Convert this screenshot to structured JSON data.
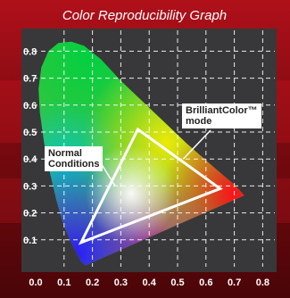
{
  "chart_data": {
    "type": "scatter",
    "title": "Color Reproducibility Graph",
    "xlabel": "",
    "ylabel": "",
    "xlim": [
      0.0,
      0.8
    ],
    "ylim": [
      0.0,
      0.85
    ],
    "x_ticks": [
      "0.0",
      "0.1",
      "0.2",
      "0.3",
      "0.4",
      "0.5",
      "0.6",
      "0.7",
      "0.8"
    ],
    "y_ticks": [
      "0.1",
      "0.2",
      "0.3",
      "0.4",
      "0.5",
      "0.6",
      "0.7",
      "0.8"
    ],
    "grid": true,
    "spectral_locus": [
      [
        0.175,
        0.005
      ],
      [
        0.17,
        0.01
      ],
      [
        0.16,
        0.02
      ],
      [
        0.145,
        0.05
      ],
      [
        0.125,
        0.09
      ],
      [
        0.1,
        0.15
      ],
      [
        0.075,
        0.24
      ],
      [
        0.05,
        0.35
      ],
      [
        0.03,
        0.46
      ],
      [
        0.015,
        0.57
      ],
      [
        0.01,
        0.66
      ],
      [
        0.02,
        0.74
      ],
      [
        0.045,
        0.8
      ],
      [
        0.08,
        0.83
      ],
      [
        0.125,
        0.835
      ],
      [
        0.17,
        0.82
      ],
      [
        0.23,
        0.77
      ],
      [
        0.3,
        0.69
      ],
      [
        0.37,
        0.62
      ],
      [
        0.45,
        0.54
      ],
      [
        0.53,
        0.46
      ],
      [
        0.6,
        0.395
      ],
      [
        0.66,
        0.34
      ],
      [
        0.7,
        0.305
      ],
      [
        0.735,
        0.265
      ],
      [
        0.175,
        0.005
      ]
    ],
    "series": [
      {
        "name": "BrilliantColor™ mode",
        "points": [
          [
            0.36,
            0.51
          ],
          [
            0.65,
            0.29
          ],
          [
            0.16,
            0.09
          ]
        ]
      }
    ],
    "annotations": [
      {
        "text_lines": [
          "BrilliantColor™",
          "mode"
        ],
        "target": [
          0.52,
          0.4
        ]
      },
      {
        "text_lines": [
          "Normal",
          "Conditions"
        ],
        "target": [
          0.28,
          0.3
        ]
      }
    ],
    "colors": {
      "background_top": "#b0101a",
      "background_bottom": "#4a0508",
      "plot_background": "#38383a",
      "grid": "#ffffff",
      "triangle": "#ffffff"
    }
  }
}
